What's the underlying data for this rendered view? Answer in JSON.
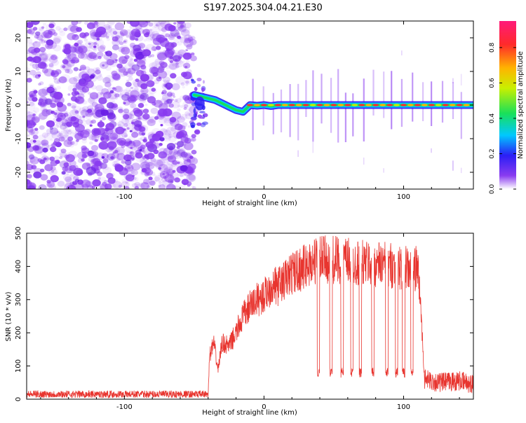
{
  "title": "S197.2025.304.04.21.E30",
  "colors": {
    "snr_line": "#e8352f",
    "axis": "#000000",
    "background": "#ffffff",
    "noise_purple": "#8a3cf0"
  },
  "chart_data": [
    {
      "type": "heatmap",
      "name": "spectrogram",
      "xlabel": "Height of straight line (km)",
      "ylabel": "Frequency (Hz)",
      "xlim": [
        -170,
        150
      ],
      "ylim": [
        -25,
        25
      ],
      "x_ticks": [
        -100,
        0,
        100
      ],
      "x_tick_labels": [
        "-100",
        "0",
        "100"
      ],
      "y_ticks": [
        -20,
        -10,
        0,
        10,
        20
      ],
      "y_tick_labels": [
        "-20",
        "-10",
        "0",
        "10",
        "20"
      ],
      "noise_region_x": [
        -170,
        -50
      ],
      "signal_track": {
        "x": [
          -50,
          -45,
          -40,
          -35,
          -30,
          -25,
          -20,
          -15,
          -10,
          -5,
          0,
          5,
          10,
          20,
          40,
          60,
          80,
          100,
          120,
          140,
          150
        ],
        "freq": [
          3,
          2.5,
          2,
          1.5,
          0.5,
          -0.5,
          -1.5,
          -2,
          0,
          -0.2,
          0,
          -0.3,
          0,
          0,
          0,
          0,
          0,
          0,
          0,
          0,
          0
        ]
      },
      "colorbar": {
        "label": "Normalized spectral amplitude",
        "range": [
          0,
          0.95
        ],
        "ticks": [
          0.0,
          0.2,
          0.4,
          0.6,
          0.8
        ],
        "tick_labels": [
          "0.0",
          "0.2",
          "0.4",
          "0.6",
          "0.8"
        ]
      }
    },
    {
      "type": "line",
      "name": "snr",
      "xlabel": "Height of straight line (km)",
      "ylabel": "SNR (10 * v/v)",
      "xlim": [
        -170,
        150
      ],
      "ylim": [
        0,
        500
      ],
      "x_ticks": [
        -100,
        0,
        100
      ],
      "x_tick_labels": [
        "-100",
        "0",
        "100"
      ],
      "y_ticks": [
        0,
        100,
        200,
        300,
        400,
        500
      ],
      "y_tick_labels": [
        "0",
        "100",
        "200",
        "300",
        "400",
        "500"
      ],
      "envelope": {
        "x": [
          -170,
          -40,
          -39,
          -36,
          -33,
          -30,
          -25,
          -20,
          -15,
          -10,
          -5,
          0,
          5,
          10,
          20,
          30,
          38,
          50,
          70,
          90,
          105,
          110,
          112,
          115,
          125,
          140,
          150
        ],
        "y": [
          15,
          15,
          130,
          170,
          90,
          170,
          160,
          200,
          250,
          280,
          300,
          310,
          340,
          340,
          380,
          400,
          420,
          420,
          410,
          405,
          390,
          395,
          300,
          60,
          50,
          55,
          45
        ]
      },
      "dropouts_x": [
        39,
        48,
        56,
        63,
        69,
        78,
        88,
        95,
        100,
        106
      ],
      "dropout_value": 80
    }
  ]
}
